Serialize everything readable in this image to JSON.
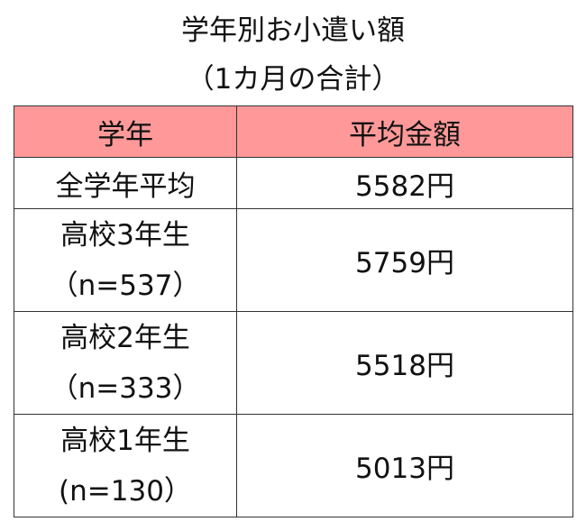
{
  "title": {
    "line1": "学年別お小遣い額",
    "line2": "（1カ月の合計）"
  },
  "header_color": "#ff9999",
  "table": {
    "headers": [
      "学年",
      "平均金額"
    ],
    "rows": [
      {
        "grade": "全学年平均",
        "sample": "",
        "amount": "5582円"
      },
      {
        "grade": "高校3年生",
        "sample": "（n=537）",
        "amount": "5759円"
      },
      {
        "grade": "高校2年生",
        "sample": "（n=333）",
        "amount": "5518円"
      },
      {
        "grade": "高校1年生",
        "sample": "(n=130）",
        "amount": "5013円"
      }
    ]
  }
}
